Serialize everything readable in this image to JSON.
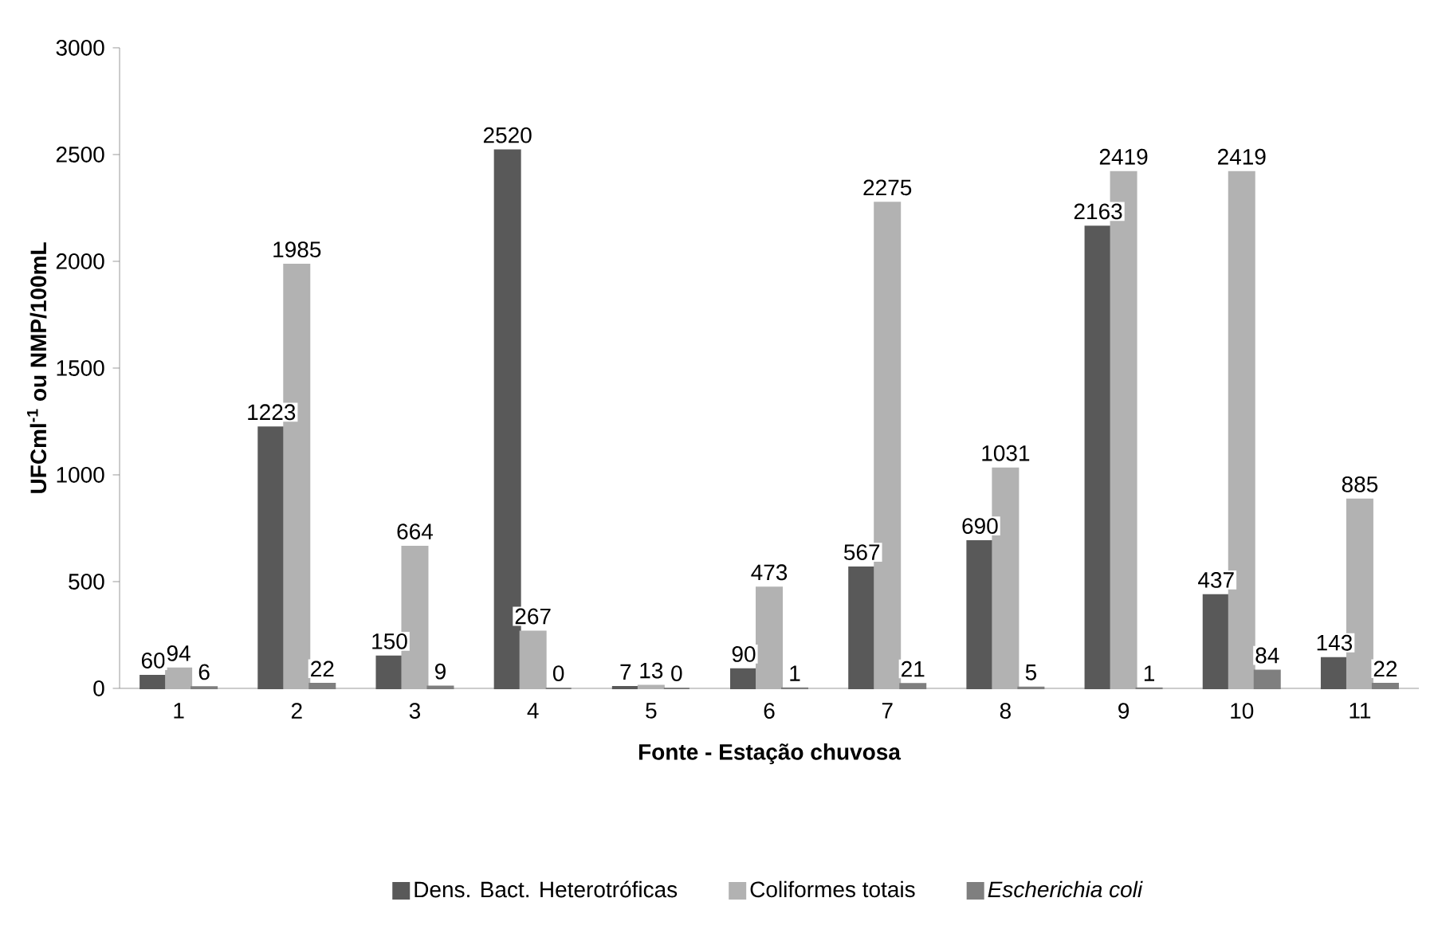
{
  "chart_data": {
    "type": "bar",
    "xlabel": "Fonte - Estação chuvosa",
    "ylabel": "UFCml$^{-1}$ ou NMP/100mL",
    "categories": [
      "1",
      "2",
      "3",
      "4",
      "5",
      "6",
      "7",
      "8",
      "9",
      "10",
      "11"
    ],
    "series": [
      {
        "name": "Dens. Bact. Heterotróficas",
        "color": "#595959",
        "values": [
          60,
          1223,
          150,
          2520,
          7,
          90,
          567,
          690,
          2163,
          437,
          143
        ]
      },
      {
        "name": "Coliformes totais",
        "color": "#b2b2b2",
        "values": [
          94,
          1985,
          664,
          267,
          13,
          473,
          2275,
          1031,
          2419,
          2419,
          885
        ]
      },
      {
        "name": "*Escherichia coli*",
        "color": "#7f7f7f",
        "values": [
          6,
          22,
          9,
          0,
          0,
          1,
          21,
          5,
          1,
          84,
          22
        ]
      }
    ],
    "ylim": [
      0,
      3000
    ],
    "yticks": [
      0,
      500,
      1000,
      1500,
      2000,
      2500,
      3000
    ],
    "data_labels": true,
    "legend": "bottom",
    "grid": false
  }
}
